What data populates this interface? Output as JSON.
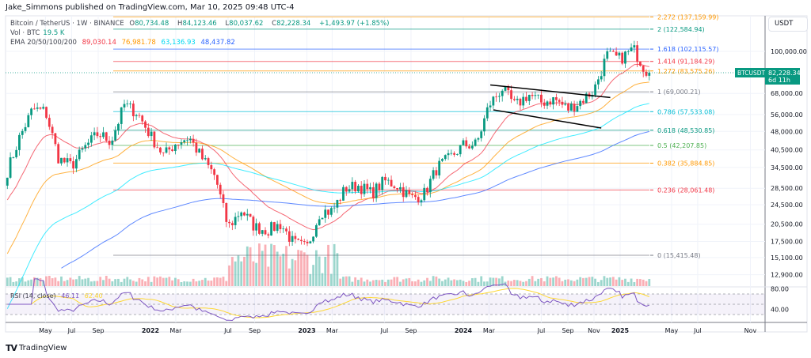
{
  "publisher_line": "Jake_Simmons published on TradingView.com, Mar 10, 2025 09:48 UTC-4",
  "legend": {
    "symbol": "Bitcoin / TetherUS · 1W · BINANCE",
    "open_label": "O",
    "open": "80,734.48",
    "high_label": "H",
    "high": "84,123.46",
    "low_label": "L",
    "low": "80,037.62",
    "close_label": "C",
    "close": "82,228.34",
    "change": "+1,493.97 (+1.85%)",
    "vol_label": "Vol · BTC",
    "vol": "19.5 K",
    "ema_label": "EMA 20/50/100/200",
    "ema20": "89,030.14",
    "ema50": "76,981.78",
    "ema100": "63,136.93",
    "ema200": "48,437.82"
  },
  "currency_button": "USDT",
  "price_tag": {
    "symbol": "BTCUSDT",
    "price": "82,228.34",
    "countdown": "6d 11h"
  },
  "colors": {
    "up": "#089981",
    "down": "#f23645",
    "ema20": "#f23645",
    "ema50": "#ff9800",
    "ema100": "#00e5ff",
    "ema200": "#2962ff",
    "rsi": "#7e57c2",
    "rsi_ma": "#fdd835"
  },
  "rsi": {
    "label": "RSI (14, close)",
    "value": "46.11",
    "ma": "62.40",
    "ticks": [
      "80.00",
      "40.00"
    ]
  },
  "footer_logo": "TradingView",
  "chart_data": {
    "type": "candlestick",
    "scale": "log",
    "price_ticks": [
      "100,000.00",
      "68,000.00",
      "56,000.00",
      "48,000.00",
      "40,500.00",
      "34,500.00",
      "28,500.00",
      "24,500.00",
      "20,500.00",
      "17,500.00",
      "15,100.00",
      "12,900.00"
    ],
    "price_tick_values": [
      100000,
      68000,
      56000,
      48000,
      40500,
      34500,
      28500,
      24500,
      20500,
      17500,
      15100,
      12900
    ],
    "time_ticks": [
      {
        "label": "May",
        "date": "2021-05-01"
      },
      {
        "label": "Jul",
        "date": "2021-07-01"
      },
      {
        "label": "Sep",
        "date": "2021-09-01"
      },
      {
        "label": "2022",
        "date": "2022-01-01",
        "bold": true
      },
      {
        "label": "Mar",
        "date": "2022-03-01"
      },
      {
        "label": "Jul",
        "date": "2022-07-01"
      },
      {
        "label": "Sep",
        "date": "2022-09-01"
      },
      {
        "label": "2023",
        "date": "2023-01-01",
        "bold": true
      },
      {
        "label": "Mar",
        "date": "2023-03-01"
      },
      {
        "label": "Jul",
        "date": "2023-07-01"
      },
      {
        "label": "Sep",
        "date": "2023-09-01"
      },
      {
        "label": "2024",
        "date": "2024-01-01",
        "bold": true
      },
      {
        "label": "Mar",
        "date": "2024-03-01"
      },
      {
        "label": "Jul",
        "date": "2024-07-01"
      },
      {
        "label": "Sep",
        "date": "2024-09-01"
      },
      {
        "label": "Nov",
        "date": "2024-11-01"
      },
      {
        "label": "2025",
        "date": "2025-01-01",
        "bold": true
      },
      {
        "label": "May",
        "date": "2025-05-01"
      },
      {
        "label": "Jul",
        "date": "2025-07-01"
      },
      {
        "label": "Nov",
        "date": "2025-11-01"
      }
    ],
    "monthly_closes": [
      [
        "2021-02-01",
        33400
      ],
      [
        "2021-03-01",
        45200
      ],
      [
        "2021-04-01",
        58900
      ],
      [
        "2021-05-01",
        57700
      ],
      [
        "2021-06-01",
        37300
      ],
      [
        "2021-07-01",
        35000
      ],
      [
        "2021-08-01",
        41500
      ],
      [
        "2021-09-01",
        47100
      ],
      [
        "2021-10-01",
        43800
      ],
      [
        "2021-11-01",
        61300
      ],
      [
        "2021-12-01",
        57000
      ],
      [
        "2022-01-01",
        46200
      ],
      [
        "2022-02-01",
        38500
      ],
      [
        "2022-03-01",
        43200
      ],
      [
        "2022-04-01",
        45500
      ],
      [
        "2022-05-01",
        37600
      ],
      [
        "2022-06-01",
        31800
      ],
      [
        "2022-07-01",
        19900
      ],
      [
        "2022-08-01",
        23300
      ],
      [
        "2022-09-01",
        20000
      ],
      [
        "2022-10-01",
        19400
      ],
      [
        "2022-11-01",
        20500
      ],
      [
        "2022-12-01",
        17200
      ],
      [
        "2023-01-01",
        16500
      ],
      [
        "2023-02-01",
        23100
      ],
      [
        "2023-03-01",
        23100
      ],
      [
        "2023-04-01",
        28500
      ],
      [
        "2023-05-01",
        29200
      ],
      [
        "2023-06-01",
        27200
      ],
      [
        "2023-07-01",
        30500
      ],
      [
        "2023-08-01",
        29200
      ],
      [
        "2023-09-01",
        26000
      ],
      [
        "2023-10-01",
        27000
      ],
      [
        "2023-11-01",
        34500
      ],
      [
        "2023-12-01",
        37700
      ],
      [
        "2024-01-01",
        42300
      ],
      [
        "2024-02-01",
        42600
      ],
      [
        "2024-03-01",
        61200
      ],
      [
        "2024-04-01",
        71300
      ],
      [
        "2024-05-01",
        60600
      ],
      [
        "2024-06-01",
        67500
      ],
      [
        "2024-07-01",
        62700
      ],
      [
        "2024-08-01",
        64600
      ],
      [
        "2024-09-01",
        58900
      ],
      [
        "2024-10-01",
        63300
      ],
      [
        "2024-11-01",
        70200
      ],
      [
        "2024-12-01",
        96400
      ],
      [
        "2025-01-01",
        93400
      ],
      [
        "2025-02-01",
        102400
      ],
      [
        "2025-03-01",
        84400
      ],
      [
        "2025-03-10",
        82228
      ]
    ],
    "fib_levels": [
      {
        "label": "2.272 (137,159.99)",
        "price": 137159.99,
        "color": "#ff9800"
      },
      {
        "label": "2 (122,584.94)",
        "price": 122584.94,
        "color": "#089981"
      },
      {
        "label": "1.618 (102,115.57)",
        "price": 102115.57,
        "color": "#2962ff"
      },
      {
        "label": "1.414 (91,184.29)",
        "price": 91184.29,
        "color": "#f23645"
      },
      {
        "label": "1.272 (83,575.26)",
        "price": 83575.26,
        "color": "#ff9800"
      },
      {
        "label": "1 (69,000.21)",
        "price": 69000.21,
        "color": "#787b86"
      },
      {
        "label": "0.786 (57,533.08)",
        "price": 57533.08,
        "color": "#00bcd4"
      },
      {
        "label": "0.618 (48,530.85)",
        "price": 48530.85,
        "color": "#089981"
      },
      {
        "label": "0.5 (42,207.85)",
        "price": 42207.85,
        "color": "#4caf50"
      },
      {
        "label": "0.382 (35,884.85)",
        "price": 35884.85,
        "color": "#ff9800"
      },
      {
        "label": "0.236 (28,061.48)",
        "price": 28061.48,
        "color": "#f23645"
      },
      {
        "label": "0 (15,415.48)",
        "price": 15415.48,
        "color": "#787b86"
      }
    ],
    "trendlines": [
      {
        "from": [
          "2024-03-04",
          73500
        ],
        "to": [
          "2024-12-09",
          65500
        ]
      },
      {
        "from": [
          "2024-03-11",
          58500
        ],
        "to": [
          "2024-11-18",
          49500
        ]
      }
    ]
  }
}
